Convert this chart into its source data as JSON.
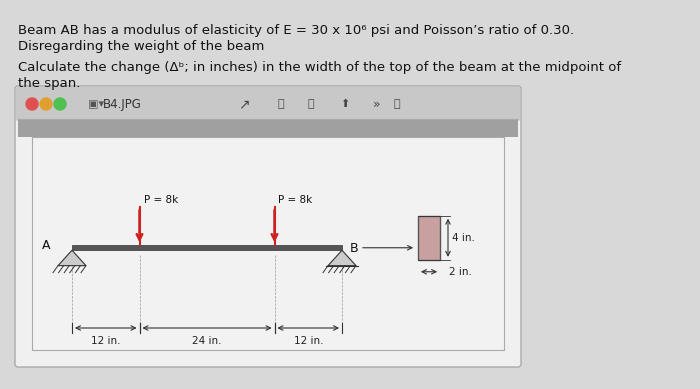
{
  "page_bg": "#d8d8d8",
  "title_line1": "Beam AB has a modulus of elasticity of E = 30 x 10⁶ psi and Poisson’s ratio of 0.30.",
  "title_line2": "Disregarding the weight of the beam",
  "title_line3": "Calculate the change (Δᵇ; in inches) in the width of the top of the beam at the midpoint of",
  "title_line4": "the span.",
  "window_title": "B4.JPG",
  "window_bg": "#f0f0f0",
  "toolbar_bg": "#c8c8c8",
  "diagram_bg": "#e8e8e8",
  "inner_diagram_bg": "#f2f2f2",
  "beam_color": "#333333",
  "arrow_color": "#cc2222",
  "force_label1": "P = 8k",
  "force_label2": "P = 8k",
  "label_A": "A",
  "label_B": "B",
  "dim1": "12 in.",
  "dim2": "24 in.",
  "dim3": "12 in.",
  "cs_height_label": "4 in.",
  "cs_width_label": "2 in.",
  "dot_colors": [
    "#e05050",
    "#e0a030",
    "#50c050"
  ],
  "text_color": "#111111",
  "dim_color": "#222222",
  "cs_fill": "#c8a0a0",
  "support_fill": "#888888"
}
